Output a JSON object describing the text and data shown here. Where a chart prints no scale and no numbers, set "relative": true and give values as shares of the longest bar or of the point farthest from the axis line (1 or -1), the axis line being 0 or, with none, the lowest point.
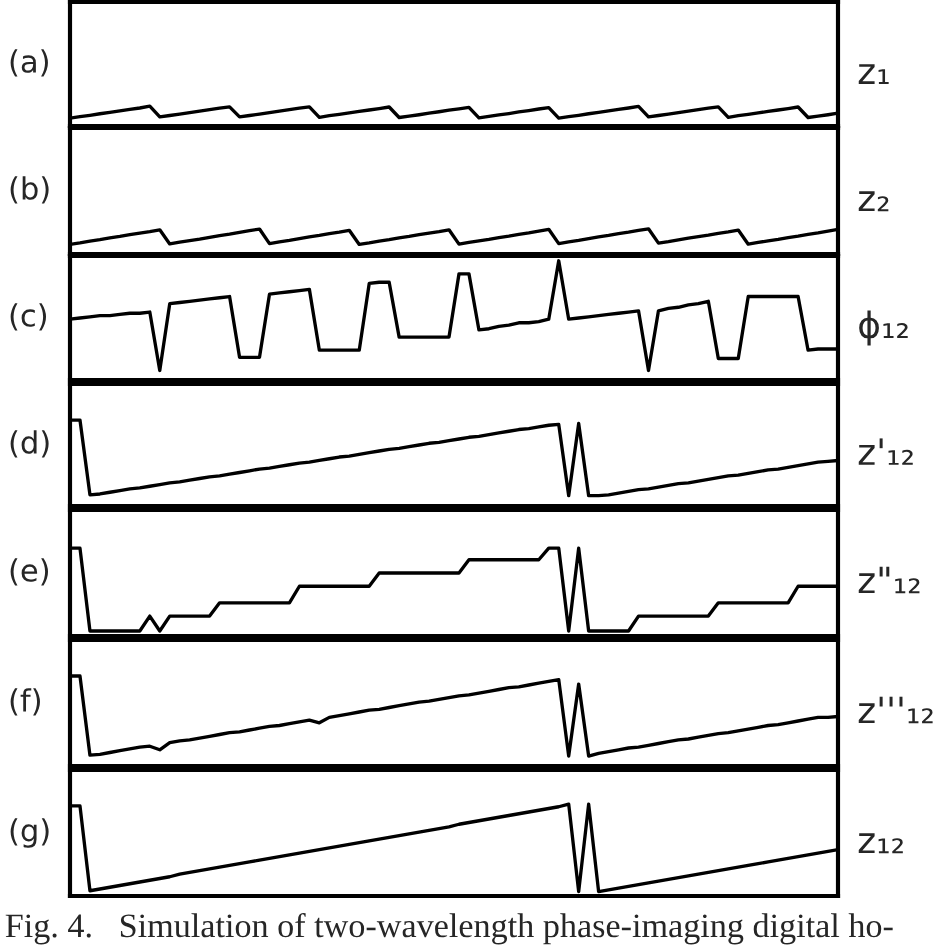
{
  "chart_data": [
    {
      "type": "line",
      "relative": true,
      "annotations": [
        "(a)",
        "z₁"
      ],
      "categories": [
        null,
        null,
        null,
        null,
        null,
        null,
        null,
        null,
        null,
        null,
        null,
        null,
        null,
        null,
        null,
        null,
        null,
        null,
        null,
        null,
        null,
        null,
        null,
        null,
        null,
        null,
        null,
        null,
        null,
        null,
        null,
        null,
        null,
        null,
        null,
        null,
        null,
        null,
        null,
        null,
        null,
        null,
        null,
        null,
        null,
        null,
        null,
        null,
        null,
        null,
        null,
        null,
        null,
        null,
        null,
        null,
        null,
        null,
        null,
        null,
        null,
        null,
        null,
        null,
        null,
        null,
        null,
        null,
        null,
        null,
        null,
        null,
        null,
        null,
        null,
        null,
        null,
        null
      ],
      "series": [
        {
          "color": "#000000",
          "values": [
            0.4,
            0.47,
            0.54,
            0.62,
            0.69,
            0.77,
            0.84,
            0.91,
            1,
            0.46,
            0.53,
            0.6,
            0.68,
            0.75,
            0.83,
            0.9,
            0.97,
            0.46,
            0.53,
            0.6,
            0.68,
            0.75,
            0.83,
            0.9,
            0.97,
            0.44,
            0.52,
            0.59,
            0.66,
            0.74,
            0.81,
            0.88,
            0.96,
            0.43,
            0.5,
            0.57,
            0.65,
            0.72,
            0.8,
            0.87,
            0.94,
            0.41,
            0.49,
            0.56,
            0.63,
            0.71,
            0.78,
            0.86,
            0.93,
            0.4,
            0.47,
            0.54,
            0.62,
            0.69,
            0.77,
            0.84,
            0.91,
            0.99,
            0.46,
            0.53,
            0.6,
            0.68,
            0.75,
            0.83,
            0.9,
            0.97,
            0.44,
            0.52,
            0.59,
            0.66,
            0.74,
            0.81,
            0.88,
            0.96,
            0.43,
            0.5,
            0.57,
            0.65
          ]
        }
      ]
    },
    {
      "type": "line",
      "relative": true,
      "annotations": [
        "(b)",
        "z₂"
      ],
      "categories": [
        null,
        null,
        null,
        null,
        null,
        null,
        null,
        null,
        null,
        null,
        null,
        null,
        null,
        null,
        null,
        null,
        null,
        null,
        null,
        null,
        null,
        null,
        null,
        null,
        null,
        null,
        null,
        null,
        null,
        null,
        null,
        null,
        null,
        null,
        null,
        null,
        null,
        null,
        null,
        null,
        null,
        null,
        null,
        null,
        null,
        null,
        null,
        null,
        null,
        null,
        null,
        null,
        null,
        null,
        null,
        null,
        null,
        null,
        null,
        null,
        null,
        null,
        null,
        null,
        null,
        null,
        null,
        null,
        null,
        null,
        null,
        null,
        null,
        null,
        null,
        null,
        null,
        null
      ],
      "series": [
        {
          "color": "#000000",
          "values": [
            0.38,
            0.44,
            0.51,
            0.57,
            0.64,
            0.7,
            0.77,
            0.83,
            0.89,
            0.96,
            0.4,
            0.47,
            0.53,
            0.59,
            0.66,
            0.73,
            0.79,
            0.86,
            0.93,
            0.99,
            0.41,
            0.48,
            0.54,
            0.61,
            0.68,
            0.74,
            0.81,
            0.87,
            0.94,
            0.38,
            0.44,
            0.51,
            0.57,
            0.64,
            0.7,
            0.77,
            0.83,
            0.89,
            0.96,
            0.39,
            0.46,
            0.52,
            0.58,
            0.65,
            0.71,
            0.78,
            0.84,
            0.91,
            0.98,
            0.41,
            0.48,
            0.54,
            0.61,
            0.68,
            0.74,
            0.81,
            0.87,
            0.94,
            1,
            0.43,
            0.49,
            0.56,
            0.63,
            0.69,
            0.75,
            0.82,
            0.88,
            0.95,
            0.39,
            0.46,
            0.52,
            0.58,
            0.65,
            0.71,
            0.78,
            0.84,
            0.91,
            0.98
          ]
        }
      ]
    },
    {
      "type": "line",
      "relative": true,
      "annotations": [
        "(c)",
        "ϕ₁₂"
      ],
      "categories": [
        null,
        null,
        null,
        null,
        null,
        null,
        null,
        null,
        null,
        null,
        null,
        null,
        null,
        null,
        null,
        null,
        null,
        null,
        null,
        null,
        null,
        null,
        null,
        null,
        null,
        null,
        null,
        null,
        null,
        null,
        null,
        null,
        null,
        null,
        null,
        null,
        null,
        null,
        null,
        null,
        null,
        null,
        null,
        null,
        null,
        null,
        null,
        null,
        null,
        null,
        null,
        null,
        null,
        null,
        null,
        null,
        null,
        null,
        null,
        null,
        null,
        null,
        null,
        null,
        null,
        null,
        null,
        null,
        null,
        null,
        null,
        null,
        null,
        null,
        null,
        null,
        null,
        null
      ],
      "series": [
        {
          "color": "#000000",
          "values": [
            0.51,
            0.52,
            0.53,
            0.54,
            0.54,
            0.55,
            0.56,
            0.56,
            0.57,
            0.08,
            0.64,
            0.65,
            0.66,
            0.67,
            0.68,
            0.69,
            0.7,
            0.19,
            0.19,
            0.19,
            0.72,
            0.73,
            0.74,
            0.75,
            0.76,
            0.25,
            0.25,
            0.25,
            0.25,
            0.25,
            0.81,
            0.82,
            0.82,
            0.36,
            0.36,
            0.36,
            0.36,
            0.36,
            0.36,
            0.89,
            0.89,
            0.42,
            0.43,
            0.45,
            0.46,
            0.48,
            0.48,
            0.49,
            0.51,
            1,
            0.51,
            0.52,
            0.53,
            0.54,
            0.55,
            0.56,
            0.57,
            0.58,
            0.08,
            0.58,
            0.6,
            0.61,
            0.63,
            0.64,
            0.66,
            0.18,
            0.18,
            0.18,
            0.7,
            0.7,
            0.7,
            0.7,
            0.7,
            0.7,
            0.25,
            0.26,
            0.26,
            0.26
          ]
        }
      ]
    },
    {
      "type": "line",
      "relative": true,
      "annotations": [
        "(d)",
        "z'₁₂"
      ],
      "categories": [
        null,
        null,
        null,
        null,
        null,
        null,
        null,
        null,
        null,
        null,
        null,
        null,
        null,
        null,
        null,
        null,
        null,
        null,
        null,
        null,
        null,
        null,
        null,
        null,
        null,
        null,
        null,
        null,
        null,
        null,
        null,
        null,
        null,
        null,
        null,
        null,
        null,
        null,
        null,
        null,
        null,
        null,
        null,
        null,
        null,
        null,
        null,
        null,
        null,
        null,
        null,
        null,
        null,
        null,
        null,
        null,
        null,
        null,
        null,
        null,
        null,
        null,
        null,
        null,
        null,
        null,
        null,
        null,
        null,
        null,
        null,
        null,
        null,
        null,
        null,
        null,
        null,
        null
      ],
      "series": [
        {
          "color": "#000000",
          "values": [
            1,
            1,
            0.13,
            0.14,
            0.16,
            0.18,
            0.2,
            0.21,
            0.23,
            0.25,
            0.27,
            0.28,
            0.3,
            0.32,
            0.34,
            0.35,
            0.37,
            0.39,
            0.41,
            0.43,
            0.44,
            0.46,
            0.48,
            0.5,
            0.51,
            0.53,
            0.55,
            0.57,
            0.58,
            0.6,
            0.62,
            0.64,
            0.66,
            0.67,
            0.69,
            0.71,
            0.73,
            0.74,
            0.76,
            0.78,
            0.8,
            0.81,
            0.83,
            0.85,
            0.87,
            0.89,
            0.9,
            0.92,
            0.94,
            0.95,
            0.12,
            0.96,
            0.12,
            0.12,
            0.13,
            0.15,
            0.17,
            0.19,
            0.2,
            0.22,
            0.24,
            0.26,
            0.27,
            0.29,
            0.31,
            0.33,
            0.35,
            0.36,
            0.38,
            0.4,
            0.42,
            0.43,
            0.45,
            0.47,
            0.49,
            0.51,
            0.52,
            0.53
          ]
        }
      ]
    },
    {
      "type": "line",
      "relative": true,
      "annotations": [
        "(e)",
        "z\"₁₂"
      ],
      "categories": [
        null,
        null,
        null,
        null,
        null,
        null,
        null,
        null,
        null,
        null,
        null,
        null,
        null,
        null,
        null,
        null,
        null,
        null,
        null,
        null,
        null,
        null,
        null,
        null,
        null,
        null,
        null,
        null,
        null,
        null,
        null,
        null,
        null,
        null,
        null,
        null,
        null,
        null,
        null,
        null,
        null,
        null,
        null,
        null,
        null,
        null,
        null,
        null,
        null,
        null,
        null,
        null,
        null,
        null,
        null,
        null,
        null,
        null,
        null,
        null,
        null,
        null,
        null,
        null,
        null,
        null,
        null,
        null,
        null,
        null,
        null,
        null,
        null,
        null,
        null,
        null,
        null,
        null
      ],
      "series": [
        {
          "color": "#000000",
          "values": [
            1,
            1,
            0,
            0,
            0,
            0,
            0,
            0,
            0.18,
            0,
            0.18,
            0.18,
            0.18,
            0.18,
            0.18,
            0.34,
            0.34,
            0.34,
            0.34,
            0.34,
            0.34,
            0.34,
            0.34,
            0.54,
            0.54,
            0.54,
            0.54,
            0.54,
            0.54,
            0.54,
            0.54,
            0.7,
            0.7,
            0.7,
            0.7,
            0.7,
            0.7,
            0.7,
            0.7,
            0.7,
            0.86,
            0.86,
            0.86,
            0.86,
            0.86,
            0.86,
            0.86,
            0.86,
            1,
            1,
            0,
            1,
            0,
            0,
            0,
            0,
            0,
            0.18,
            0.18,
            0.18,
            0.18,
            0.18,
            0.18,
            0.18,
            0.18,
            0.34,
            0.34,
            0.34,
            0.34,
            0.34,
            0.34,
            0.34,
            0.34,
            0.54,
            0.54,
            0.54,
            0.54,
            0.54
          ]
        }
      ]
    },
    {
      "type": "line",
      "relative": true,
      "annotations": [
        "(f)",
        "z'''₁₂"
      ],
      "categories": [
        null,
        null,
        null,
        null,
        null,
        null,
        null,
        null,
        null,
        null,
        null,
        null,
        null,
        null,
        null,
        null,
        null,
        null,
        null,
        null,
        null,
        null,
        null,
        null,
        null,
        null,
        null,
        null,
        null,
        null,
        null,
        null,
        null,
        null,
        null,
        null,
        null,
        null,
        null,
        null,
        null,
        null,
        null,
        null,
        null,
        null,
        null,
        null,
        null,
        null,
        null,
        null,
        null,
        null,
        null,
        null,
        null,
        null,
        null,
        null,
        null,
        null,
        null,
        null,
        null,
        null,
        null,
        null,
        null,
        null,
        null,
        null,
        null,
        null,
        null,
        null,
        null,
        null
      ],
      "series": [
        {
          "color": "#000000",
          "values": [
            1,
            1,
            0.12,
            0.13,
            0.15,
            0.17,
            0.19,
            0.21,
            0.22,
            0.18,
            0.26,
            0.28,
            0.29,
            0.31,
            0.33,
            0.35,
            0.37,
            0.38,
            0.4,
            0.42,
            0.44,
            0.45,
            0.47,
            0.49,
            0.51,
            0.48,
            0.54,
            0.56,
            0.58,
            0.6,
            0.62,
            0.63,
            0.65,
            0.67,
            0.69,
            0.71,
            0.72,
            0.74,
            0.76,
            0.78,
            0.79,
            0.81,
            0.83,
            0.85,
            0.87,
            0.88,
            0.9,
            0.92,
            0.94,
            0.96,
            0.11,
            0.91,
            0.11,
            0.14,
            0.16,
            0.18,
            0.2,
            0.21,
            0.23,
            0.25,
            0.27,
            0.29,
            0.3,
            0.32,
            0.34,
            0.36,
            0.37,
            0.39,
            0.41,
            0.43,
            0.45,
            0.46,
            0.48,
            0.5,
            0.52,
            0.54,
            0.54,
            0.55
          ]
        }
      ]
    },
    {
      "type": "line",
      "relative": true,
      "annotations": [
        "(g)",
        "z₁₂",
        "Fig. 4.   Simulation of two-wavelength phase-imaging digital ho-"
      ],
      "categories": [
        null,
        null,
        null,
        null,
        null,
        null,
        null,
        null,
        null,
        null,
        null,
        null,
        null,
        null,
        null,
        null,
        null,
        null,
        null,
        null,
        null,
        null,
        null,
        null,
        null,
        null,
        null,
        null,
        null,
        null,
        null,
        null,
        null,
        null,
        null,
        null,
        null,
        null,
        null,
        null,
        null,
        null,
        null,
        null,
        null,
        null,
        null,
        null,
        null,
        null,
        null,
        null,
        null,
        null,
        null,
        null,
        null,
        null,
        null,
        null,
        null,
        null,
        null,
        null,
        null,
        null,
        null,
        null,
        null,
        null,
        null,
        null,
        null,
        null,
        null,
        null,
        null,
        null
      ],
      "series": [
        {
          "color": "#000000",
          "values": [
            0.98,
            0.98,
            0.01,
            0.03,
            0.05,
            0.07,
            0.09,
            0.11,
            0.13,
            0.15,
            0.17,
            0.2,
            0.22,
            0.24,
            0.26,
            0.28,
            0.3,
            0.32,
            0.34,
            0.36,
            0.38,
            0.4,
            0.42,
            0.44,
            0.46,
            0.48,
            0.5,
            0.52,
            0.54,
            0.56,
            0.58,
            0.6,
            0.62,
            0.64,
            0.66,
            0.68,
            0.7,
            0.72,
            0.74,
            0.77,
            0.79,
            0.81,
            0.83,
            0.85,
            0.87,
            0.89,
            0.91,
            0.93,
            0.95,
            0.97,
            1,
            0,
            1,
            0,
            0.02,
            0.04,
            0.06,
            0.08,
            0.1,
            0.12,
            0.14,
            0.16,
            0.18,
            0.2,
            0.22,
            0.24,
            0.26,
            0.28,
            0.3,
            0.32,
            0.34,
            0.36,
            0.38,
            0.4,
            0.42,
            0.44,
            0.46,
            0.48
          ]
        }
      ]
    }
  ]
}
